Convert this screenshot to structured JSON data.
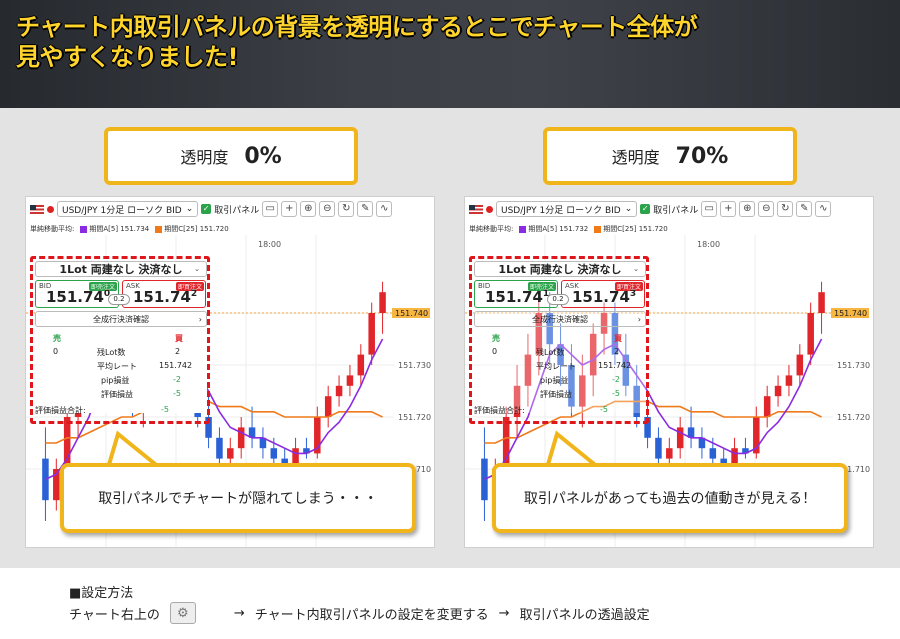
{
  "banner": {
    "line1": "チャート内取引パネルの背景を透明にするとこでチャート全体が",
    "line2": "見やすくなりました!"
  },
  "left": {
    "label": "透明度",
    "value": "0%",
    "callout": "取引パネルでチャートが隠れてしまう・・・",
    "bid_mant": "151.74",
    "bid_sup": "0",
    "ask_mant": "151.74",
    "ask_sup": "2",
    "sym": "USD/JPY 1分足 ローソク BID",
    "ma_a": "期間A[5] 151.734",
    "ma_c": "期間C[25] 151.720"
  },
  "right": {
    "label": "透明度",
    "value": "70%",
    "callout": "取引パネルがあっても過去の値動きが見える！",
    "bid_mant": "151.74",
    "bid_sup": "1",
    "ask_mant": "151.74",
    "ask_sup": "3",
    "sym": "USD/JPY 1分足 ローソク BID",
    "ma_a": "期間A[5] 151.732",
    "ma_c": "期間C[25] 151.720"
  },
  "common": {
    "panel_label": "取引パネル",
    "ma_title": "単純移動平均:",
    "time": "18:00",
    "price_tag": "151.740",
    "y_ticks": [
      "151.730",
      "151.720",
      "151.710"
    ],
    "lot": "1Lot 両建なし 決済なし",
    "bid": "BID",
    "ask": "ASK",
    "sell_tag": "即売注文",
    "buy_tag": "即買注文",
    "spread": "0.2",
    "confirm": "全成行決済確認",
    "sell": "売",
    "buy": "買",
    "zero": "0",
    "lots_label": "残Lot数",
    "lots_val": "2",
    "avg_label": "平均レート",
    "avg_val": "151.742",
    "pip_label": "pip損益",
    "pip_val": "-2",
    "eval_label": "評価損益",
    "eval_val": "-5",
    "total_label": "評価損益合計:",
    "total_val": "-5"
  },
  "bottom": {
    "title": "■設定方法",
    "step0": "チャート右上の",
    "arrow": "→",
    "step1": "チャート内取引パネルの設定を変更する",
    "step2": "取引パネルの透過設定"
  },
  "colors": {
    "accent": "#f1b51c",
    "banner_text": "#ffd52b",
    "dash": "#e0161d",
    "up": "#e0262b",
    "down": "#2a62d6",
    "ma_a": "#8a2be2",
    "ma_c": "#f07a1a"
  },
  "chart_data": {
    "type": "candlestick",
    "y_ticks": [
      151.71,
      151.72,
      151.73,
      151.74
    ],
    "ylim": [
      151.695,
      151.755
    ],
    "ohlc": [
      [
        151.712,
        151.718,
        151.7,
        151.704
      ],
      [
        151.704,
        151.712,
        151.702,
        151.71
      ],
      [
        151.71,
        151.722,
        151.708,
        151.72
      ],
      [
        151.72,
        151.73,
        151.716,
        151.726
      ],
      [
        151.726,
        151.736,
        151.722,
        151.732
      ],
      [
        151.732,
        151.744,
        151.728,
        151.74
      ],
      [
        151.74,
        151.744,
        151.73,
        151.734
      ],
      [
        151.734,
        151.738,
        151.726,
        151.73
      ],
      [
        151.73,
        151.734,
        151.72,
        151.722
      ],
      [
        151.722,
        151.732,
        151.718,
        151.728
      ],
      [
        151.728,
        151.738,
        151.724,
        151.736
      ],
      [
        151.736,
        151.742,
        151.732,
        151.74
      ],
      [
        151.74,
        151.742,
        151.73,
        151.732
      ],
      [
        151.732,
        151.736,
        151.724,
        151.726
      ],
      [
        151.726,
        151.73,
        151.718,
        151.72
      ],
      [
        151.72,
        151.724,
        151.714,
        151.716
      ],
      [
        151.716,
        151.718,
        151.71,
        151.712
      ],
      [
        151.712,
        151.716,
        151.708,
        151.714
      ],
      [
        151.714,
        151.72,
        151.712,
        151.718
      ],
      [
        151.718,
        151.722,
        151.714,
        151.716
      ],
      [
        151.716,
        151.718,
        151.712,
        151.714
      ],
      [
        151.714,
        151.716,
        151.71,
        151.712
      ],
      [
        151.712,
        151.714,
        151.708,
        151.71
      ],
      [
        151.71,
        151.716,
        151.708,
        151.714
      ],
      [
        151.714,
        151.716,
        151.712,
        151.713
      ],
      [
        151.713,
        151.722,
        151.712,
        151.72
      ],
      [
        151.72,
        151.726,
        151.718,
        151.724
      ],
      [
        151.724,
        151.728,
        151.722,
        151.726
      ],
      [
        151.726,
        151.73,
        151.724,
        151.728
      ],
      [
        151.728,
        151.734,
        151.726,
        151.732
      ],
      [
        151.732,
        151.742,
        151.73,
        151.74
      ],
      [
        151.74,
        151.746,
        151.736,
        151.744
      ]
    ],
    "ma_a": [
      151.708,
      151.709,
      151.712,
      151.716,
      151.72,
      151.726,
      151.732,
      151.734,
      151.732,
      151.73,
      151.731,
      151.733,
      151.734,
      151.731,
      151.728,
      151.725,
      151.721,
      151.718,
      151.717,
      151.716,
      151.716,
      151.715,
      151.714,
      151.713,
      151.713,
      151.714,
      151.717,
      151.719,
      151.722,
      151.726,
      151.731,
      151.735
    ],
    "ma_c": [
      151.715,
      151.715,
      151.716,
      151.716,
      151.717,
      151.718,
      151.719,
      151.72,
      151.72,
      151.721,
      151.722,
      151.722,
      151.723,
      151.723,
      151.723,
      151.723,
      151.722,
      151.722,
      151.722,
      151.721,
      151.721,
      151.721,
      151.72,
      151.72,
      151.72,
      151.72,
      151.72,
      151.721,
      151.721,
      151.721,
      151.721,
      151.72
    ]
  }
}
